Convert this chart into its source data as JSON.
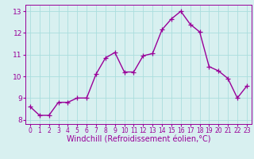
{
  "x": [
    0,
    1,
    2,
    3,
    4,
    5,
    6,
    7,
    8,
    9,
    10,
    11,
    12,
    13,
    14,
    15,
    16,
    17,
    18,
    19,
    20,
    21,
    22,
    23
  ],
  "y": [
    8.6,
    8.2,
    8.2,
    8.8,
    8.8,
    9.0,
    9.0,
    10.1,
    10.85,
    11.1,
    10.2,
    10.2,
    10.95,
    11.05,
    12.15,
    12.65,
    13.0,
    12.4,
    12.05,
    10.45,
    10.25,
    9.9,
    9.0,
    9.55
  ],
  "line_color": "#990099",
  "marker": "+",
  "marker_size": 4,
  "linewidth": 1.0,
  "background_color": "#d8f0f0",
  "grid_color": "#aadddd",
  "xlabel": "Windchill (Refroidissement éolien,°C)",
  "xlabel_color": "#990099",
  "ylabel_ticks": [
    8,
    9,
    10,
    11,
    12,
    13
  ],
  "xlim": [
    -0.5,
    23.5
  ],
  "ylim": [
    7.8,
    13.3
  ],
  "xtick_labels": [
    "0",
    "1",
    "2",
    "3",
    "4",
    "5",
    "6",
    "7",
    "8",
    "9",
    "10",
    "11",
    "12",
    "13",
    "14",
    "15",
    "16",
    "17",
    "18",
    "19",
    "20",
    "21",
    "22",
    "23"
  ],
  "tick_color": "#990099",
  "tick_fontsize": 5.5,
  "xlabel_fontsize": 7.0,
  "spine_color": "#990099",
  "ytick_fontsize": 6.5
}
